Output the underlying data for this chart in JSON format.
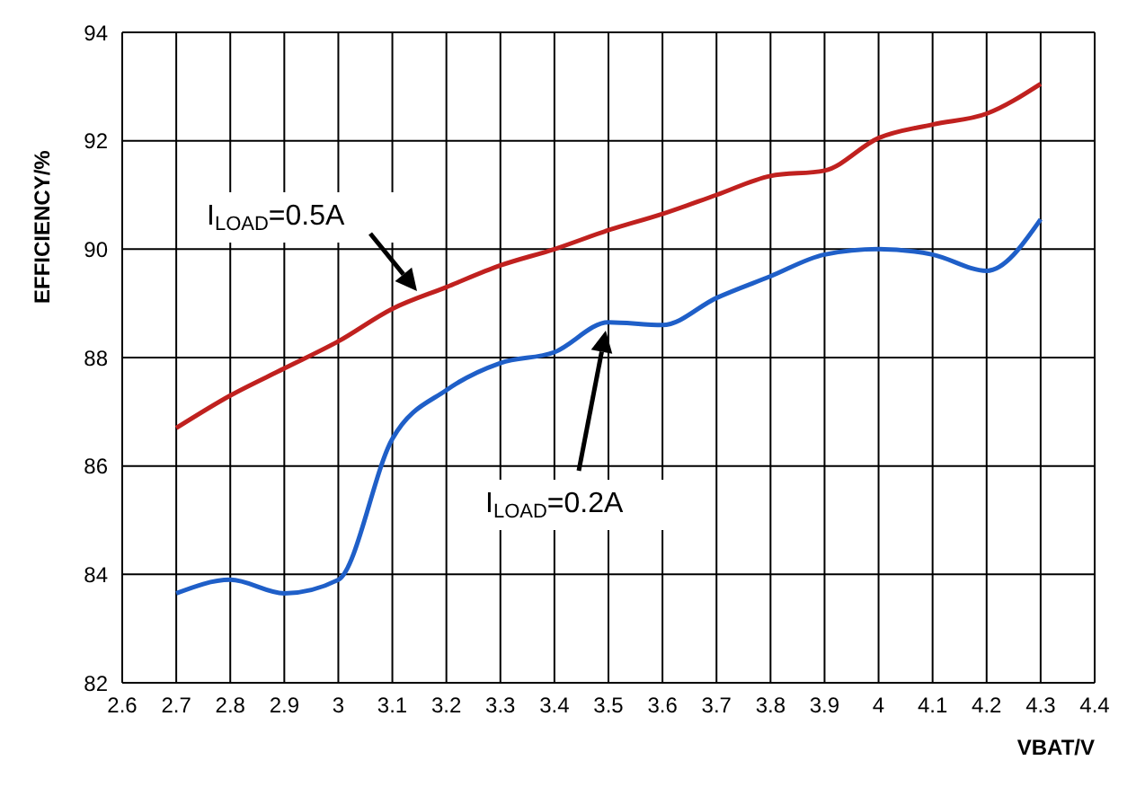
{
  "chart_data": {
    "type": "line",
    "xlabel": "VBAT/V",
    "ylabel": "EFFICIENCY/%",
    "x": [
      2.7,
      2.8,
      2.9,
      3.0,
      3.1,
      3.2,
      3.3,
      3.4,
      3.5,
      3.6,
      3.7,
      3.8,
      3.9,
      4.0,
      4.1,
      4.2,
      4.3
    ],
    "series": [
      {
        "color": "#c0211f",
        "values": [
          86.7,
          87.3,
          87.8,
          88.3,
          88.9,
          89.3,
          89.7,
          90.0,
          90.35,
          90.65,
          91.0,
          91.35,
          91.45,
          92.05,
          92.3,
          92.5,
          93.05
        ]
      },
      {
        "color": "#1f5fc8",
        "values": [
          83.65,
          83.9,
          83.65,
          83.9,
          86.5,
          87.4,
          87.9,
          88.1,
          88.65,
          88.6,
          89.1,
          89.5,
          89.9,
          90.0,
          89.9,
          89.6,
          90.55
        ]
      }
    ],
    "xlim": [
      2.6,
      4.4
    ],
    "xticks": [
      2.6,
      2.7,
      2.8,
      2.9,
      3,
      3.1,
      3.2,
      3.3,
      3.4,
      3.5,
      3.6,
      3.7,
      3.8,
      3.9,
      4,
      4.1,
      4.2,
      4.3,
      4.4
    ],
    "ylim": [
      82,
      94
    ],
    "yticks": [
      82,
      84,
      86,
      88,
      90,
      92,
      94
    ],
    "grid": true,
    "marker": "none",
    "line_style": "solid",
    "annotations": [
      "I$_{LOAD}$=0.5A",
      "I$_{LOAD}$=0.2A"
    ]
  }
}
